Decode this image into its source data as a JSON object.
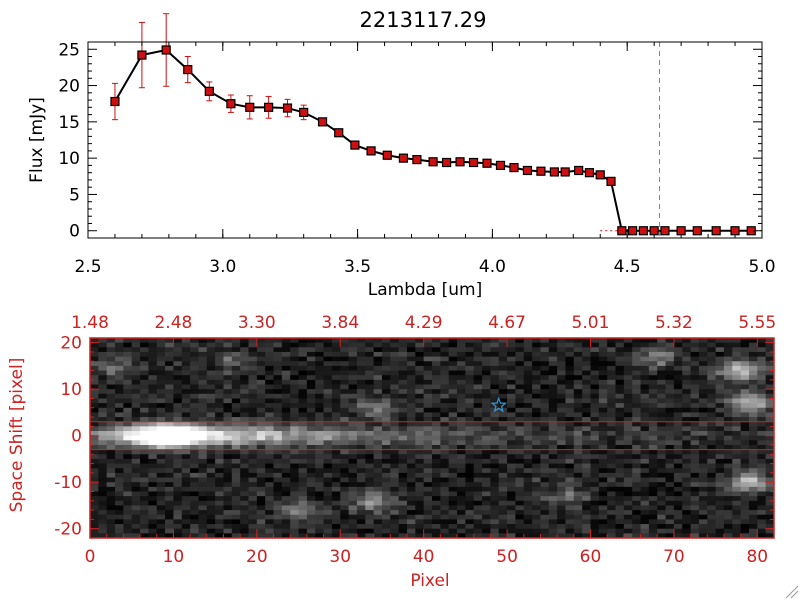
{
  "chart_data": [
    {
      "type": "line",
      "title": "2213117.29",
      "xlabel": "Lambda [um]",
      "ylabel": "Flux [mJy]",
      "xlim": [
        2.5,
        5.0
      ],
      "ylim": [
        -1,
        26
      ],
      "xticks": [
        "2.5",
        "3.0",
        "3.5",
        "4.0",
        "4.5",
        "5.0"
      ],
      "xtick_values": [
        2.5,
        3.0,
        3.5,
        4.0,
        4.5,
        5.0
      ],
      "yticks": [
        "0",
        "5",
        "10",
        "15",
        "20",
        "25"
      ],
      "ytick_values": [
        0,
        5,
        10,
        15,
        20,
        25
      ],
      "x": [
        2.6,
        2.7,
        2.79,
        2.87,
        2.95,
        3.03,
        3.1,
        3.17,
        3.24,
        3.3,
        3.37,
        3.43,
        3.49,
        3.55,
        3.61,
        3.67,
        3.72,
        3.78,
        3.83,
        3.88,
        3.93,
        3.98,
        4.03,
        4.08,
        4.13,
        4.18,
        4.23,
        4.27,
        4.32,
        4.36,
        4.4,
        4.44,
        4.48,
        4.52,
        4.56,
        4.6,
        4.64,
        4.7,
        4.76,
        4.83,
        4.9,
        4.96
      ],
      "y": [
        17.8,
        24.2,
        24.9,
        22.2,
        19.2,
        17.5,
        17.0,
        17.0,
        16.9,
        16.3,
        15.0,
        13.5,
        11.8,
        11.0,
        10.4,
        10.0,
        9.8,
        9.5,
        9.4,
        9.5,
        9.4,
        9.3,
        9.0,
        8.7,
        8.3,
        8.2,
        8.1,
        8.1,
        8.3,
        8.0,
        7.7,
        6.8,
        0,
        0,
        0,
        0,
        0,
        0,
        0,
        0,
        0,
        0
      ],
      "yerr": [
        2.5,
        4.5,
        5.0,
        1.8,
        1.3,
        1.2,
        1.6,
        1.5,
        1.2,
        1.0,
        0.5,
        0.4,
        0.3,
        0.3,
        0.3,
        0.2,
        0.2,
        0.2,
        0.2,
        0.2,
        0.2,
        0.2,
        0.2,
        0.2,
        0.2,
        0.2,
        0.2,
        0.2,
        0.2,
        0.2,
        0.2,
        0.2,
        0,
        0,
        0,
        0,
        0,
        0,
        0,
        0,
        0,
        0
      ],
      "vline_x": 4.62,
      "colors": {
        "line": "#000000",
        "marker": "#cc1010",
        "errorbar": "#cc1010",
        "vline": "#3399dd"
      }
    },
    {
      "type": "heatmap",
      "xlabel": "Pixel",
      "ylabel": "Space Shift [pixel]",
      "xlim": [
        0,
        82
      ],
      "ylim": [
        -22,
        21
      ],
      "xticks": [
        "0",
        "10",
        "20",
        "30",
        "40",
        "50",
        "60",
        "70",
        "80"
      ],
      "xtick_values": [
        0,
        10,
        20,
        30,
        40,
        50,
        60,
        70,
        80
      ],
      "yticks": [
        "-20",
        "-10",
        "0",
        "10",
        "20"
      ],
      "ytick_values": [
        -20,
        -10,
        0,
        10,
        20
      ],
      "top_axis_label_values": [
        "1.48",
        "2.48",
        "3.30",
        "3.84",
        "4.29",
        "4.67",
        "5.01",
        "5.32",
        "5.55"
      ],
      "trace_band_y": [
        -3,
        3
      ],
      "trace_center_y": 0,
      "peak_pixel": 10,
      "star_marker": {
        "x": 49,
        "y": 6.5
      },
      "blobs": [
        {
          "x": 34,
          "y": 6,
          "strength": 0.3
        },
        {
          "x": 34,
          "y": -14,
          "strength": 0.4
        },
        {
          "x": 25,
          "y": -16,
          "strength": 0.3
        },
        {
          "x": 68,
          "y": 17,
          "strength": 0.35
        },
        {
          "x": 78,
          "y": 14,
          "strength": 0.6
        },
        {
          "x": 79,
          "y": 7,
          "strength": 0.6
        },
        {
          "x": 79,
          "y": -10,
          "strength": 0.6
        },
        {
          "x": 57,
          "y": -13,
          "strength": 0.25
        },
        {
          "x": 3,
          "y": 15,
          "strength": 0.25
        },
        {
          "x": 17,
          "y": 16,
          "strength": 0.2
        }
      ],
      "colors": {
        "axis": "#cc2222",
        "band": "#cc2222",
        "star": "#3399dd"
      }
    }
  ]
}
